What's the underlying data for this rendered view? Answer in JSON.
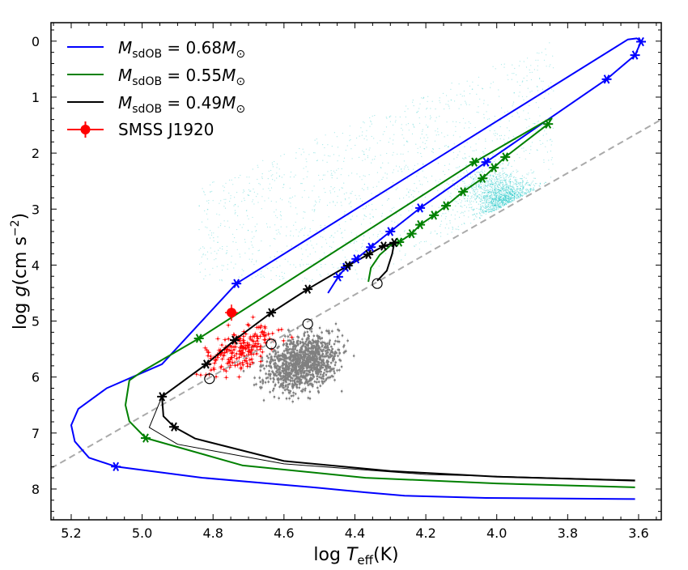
{
  "chart_data": {
    "type": "line",
    "xlabel": {
      "prefix": "log ",
      "var": "T",
      "sub": "eff",
      "suffix": "(K)"
    },
    "ylabel": {
      "prefix": "log ",
      "var": "g",
      "suffix": "(cm s",
      "exp": "−2",
      "close": ")"
    },
    "xlim": [
      5.257,
      3.536
    ],
    "ylim": [
      8.55,
      -0.33
    ],
    "x_reversed": true,
    "y_reversed": true,
    "xticks": [
      5.2,
      5.0,
      4.8,
      4.6,
      4.4,
      4.2,
      4.0,
      3.8,
      3.6
    ],
    "xtick_labels": [
      "5.2",
      "5.0",
      "4.8",
      "4.6",
      "4.4",
      "4.2",
      "4.0",
      "3.8",
      "3.6"
    ],
    "yticks": [
      0,
      1,
      2,
      3,
      4,
      5,
      6,
      7,
      8
    ],
    "ytick_labels": [
      "0",
      "1",
      "2",
      "3",
      "4",
      "5",
      "6",
      "7",
      "8"
    ],
    "legend_position": "top-left",
    "series": [
      {
        "name": "M_sdOB = 0.68 M_sun",
        "legend": {
          "m": "M",
          "sub": "sdOB",
          "eq": " = 0.68",
          "m2": "M",
          "sun": "⊙"
        },
        "color": "#0000ff",
        "points": [
          [
            4.476,
            4.5
          ],
          [
            4.447,
            4.21
          ],
          [
            4.426,
            4.04
          ],
          [
            4.396,
            3.89
          ],
          [
            4.355,
            3.68
          ],
          [
            4.3,
            3.4
          ],
          [
            4.216,
            2.98
          ],
          [
            4.03,
            2.16
          ],
          [
            3.69,
            0.68
          ],
          [
            3.61,
            0.25
          ],
          [
            3.593,
            0.01
          ],
          [
            3.605,
            -0.05
          ],
          [
            3.63,
            -0.03
          ],
          [
            4.734,
            4.33
          ],
          [
            4.944,
            5.77
          ],
          [
            5.1,
            6.2
          ],
          [
            5.18,
            6.57
          ],
          [
            5.2,
            6.86
          ],
          [
            5.19,
            7.15
          ],
          [
            5.15,
            7.44
          ],
          [
            5.074,
            7.6
          ],
          [
            4.83,
            7.8
          ],
          [
            4.5,
            7.98
          ],
          [
            4.37,
            8.06
          ],
          [
            4.26,
            8.12
          ],
          [
            4.03,
            8.16
          ],
          [
            3.61,
            8.18
          ]
        ],
        "stars": [
          [
            3.593,
            0.01
          ],
          [
            3.61,
            0.25
          ],
          [
            3.69,
            0.68
          ],
          [
            4.03,
            2.16
          ],
          [
            4.216,
            2.98
          ],
          [
            4.3,
            3.4
          ],
          [
            4.355,
            3.68
          ],
          [
            4.396,
            3.89
          ],
          [
            4.426,
            4.04
          ],
          [
            4.447,
            4.21
          ],
          [
            4.734,
            4.33
          ],
          [
            5.074,
            7.6
          ]
        ]
      },
      {
        "name": "M_sdOB = 0.55 M_sun",
        "legend": {
          "m": "M",
          "sub": "sdOB",
          "eq": " = 0.55",
          "m2": "M",
          "sun": "⊙"
        },
        "color": "#008000",
        "points": [
          [
            4.362,
            4.3
          ],
          [
            4.355,
            4.05
          ],
          [
            4.33,
            3.82
          ],
          [
            4.3,
            3.65
          ],
          [
            4.275,
            3.59
          ],
          [
            4.24,
            3.44
          ],
          [
            4.216,
            3.28
          ],
          [
            4.177,
            3.11
          ],
          [
            4.143,
            2.94
          ],
          [
            4.095,
            2.69
          ],
          [
            4.04,
            2.45
          ],
          [
            4.008,
            2.26
          ],
          [
            3.976,
            2.07
          ],
          [
            3.855,
            1.48
          ],
          [
            3.845,
            1.38
          ],
          [
            3.86,
            1.42
          ],
          [
            4.063,
            2.16
          ],
          [
            4.84,
            5.31
          ],
          [
            5.0,
            5.9
          ],
          [
            5.036,
            6.06
          ],
          [
            5.047,
            6.5
          ],
          [
            5.036,
            6.79
          ],
          [
            4.99,
            7.09
          ],
          [
            4.716,
            7.58
          ],
          [
            4.37,
            7.8
          ],
          [
            4.0,
            7.9
          ],
          [
            3.61,
            7.97
          ]
        ],
        "stars": [
          [
            3.855,
            1.48
          ],
          [
            3.976,
            2.07
          ],
          [
            4.008,
            2.26
          ],
          [
            4.04,
            2.45
          ],
          [
            4.063,
            2.16
          ],
          [
            4.095,
            2.69
          ],
          [
            4.143,
            2.94
          ],
          [
            4.177,
            3.11
          ],
          [
            4.216,
            3.28
          ],
          [
            4.24,
            3.44
          ],
          [
            4.275,
            3.59
          ],
          [
            4.84,
            5.31
          ],
          [
            4.99,
            7.09
          ]
        ]
      },
      {
        "name": "M_sdOB = 0.49 M_sun",
        "legend": {
          "m": "M",
          "sub": "sdOB",
          "eq": " = 0.49",
          "m2": "M",
          "sun": "⊙"
        },
        "color": "#000000",
        "points": [
          [
            4.337,
            4.28
          ],
          [
            4.31,
            4.1
          ],
          [
            4.295,
            3.8
          ],
          [
            4.289,
            3.6
          ],
          [
            4.319,
            3.66
          ],
          [
            4.362,
            3.81
          ],
          [
            4.42,
            4.01
          ],
          [
            4.533,
            4.43
          ],
          [
            4.636,
            4.85
          ],
          [
            4.739,
            5.34
          ],
          [
            4.819,
            5.77
          ],
          [
            4.944,
            6.35
          ],
          [
            4.94,
            6.7
          ],
          [
            4.91,
            6.89
          ],
          [
            4.85,
            7.1
          ],
          [
            4.6,
            7.5
          ],
          [
            4.3,
            7.68
          ],
          [
            4.0,
            7.78
          ],
          [
            3.61,
            7.85
          ]
        ],
        "points_thin": [
          [
            4.944,
            6.35
          ],
          [
            4.98,
            6.9
          ],
          [
            4.9,
            7.2
          ],
          [
            4.6,
            7.55
          ],
          [
            4.2,
            7.74
          ],
          [
            3.61,
            7.84
          ]
        ],
        "stars": [
          [
            4.289,
            3.6
          ],
          [
            4.319,
            3.66
          ],
          [
            4.362,
            3.81
          ],
          [
            4.42,
            4.01
          ],
          [
            4.533,
            4.43
          ],
          [
            4.636,
            4.85
          ],
          [
            4.739,
            5.34
          ],
          [
            4.819,
            5.77
          ],
          [
            4.944,
            6.35
          ],
          [
            4.91,
            6.89
          ]
        ],
        "circles": [
          [
            4.337,
            4.33
          ],
          [
            4.533,
            5.05
          ],
          [
            4.636,
            5.41
          ],
          [
            4.81,
            6.03
          ]
        ]
      }
    ],
    "target": {
      "name": "SMSS J1920",
      "x": 4.748,
      "y": 4.85,
      "color": "#ff0000"
    },
    "reference_line": {
      "points": [
        [
          5.257,
          7.63
        ],
        [
          3.536,
          1.4
        ]
      ],
      "color": "#aaaaaa",
      "style": "dashed"
    },
    "scatter_colors": {
      "cyan": "#00c0c0",
      "gray": "#808080",
      "red": "#ff0000"
    }
  }
}
